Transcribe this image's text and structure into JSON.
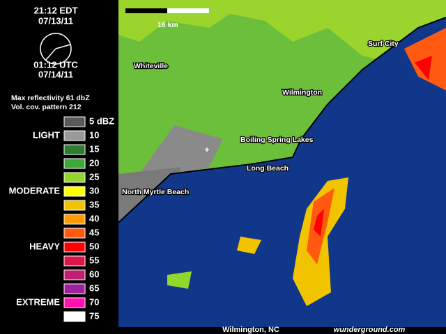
{
  "header": {
    "time_local": "21:12  EDT",
    "date_local": "07/13/11",
    "time_utc": "01:12  UTC",
    "date_utc": "07/14/11",
    "reflectivity": "Max reflectivity 61 dbZ",
    "pattern": "Vol. cov. pattern 212"
  },
  "legend": {
    "levels": [
      {
        "label": "5 dBZ",
        "color": "#5a5a5a"
      },
      {
        "label": "10",
        "color": "#9a9a9a"
      },
      {
        "label": "15",
        "color": "#2c7d2c"
      },
      {
        "label": "20",
        "color": "#3fa83a"
      },
      {
        "label": "25",
        "color": "#92d82a"
      },
      {
        "label": "30",
        "color": "#ffff00"
      },
      {
        "label": "35",
        "color": "#f2c400"
      },
      {
        "label": "40",
        "color": "#ff9a00"
      },
      {
        "label": "45",
        "color": "#ff5a10"
      },
      {
        "label": "50",
        "color": "#ff0000"
      },
      {
        "label": "55",
        "color": "#dc1648"
      },
      {
        "label": "60",
        "color": "#c02070"
      },
      {
        "label": "65",
        "color": "#a020a0"
      },
      {
        "label": "70",
        "color": "#ff10b0"
      },
      {
        "label": "75",
        "color": "#ffffff"
      }
    ],
    "categories": [
      "LIGHT",
      "MODERATE",
      "HEAVY",
      "EXTREME"
    ]
  },
  "map": {
    "scale": "16 km",
    "cities": [
      "Whiteville",
      "Surf City",
      "Wilmington",
      "Boiling Spring Lakes",
      "Long Beach",
      "North Myrtle Beach"
    ]
  },
  "footer": {
    "station": "Wilmington, NC",
    "brand": "wunderground.com"
  }
}
